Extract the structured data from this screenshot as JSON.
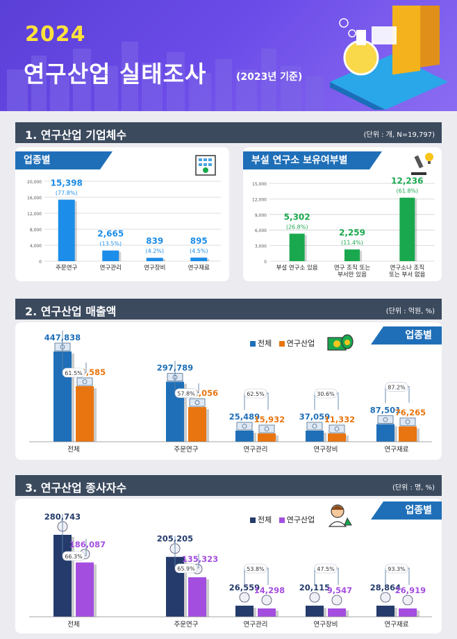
{
  "header": {
    "year": "2024",
    "title": "연구산업 실태조사",
    "subtitle": "(2023년 기준)"
  },
  "colors": {
    "total": "#1f6fb8",
    "industry_orange": "#e8750f",
    "industry_purple": "#a44ee0",
    "total_navy": "#243b6b",
    "section_blue": "#1c8de8",
    "section_green": "#1aa84e"
  },
  "section1": {
    "title": "1. 연구산업 기업체수",
    "unit": "(단위 : 개, N=19,797)",
    "left_tag": "업종별",
    "right_tag": "부설 연구소 보유여부별"
  },
  "section2": {
    "title": "2. 연구산업 매출액",
    "unit": "(단위 : 억원, %)",
    "tag": "업종별",
    "legend_total": "전체",
    "legend_industry": "연구산업"
  },
  "section3": {
    "title": "3. 연구산업 종사자수",
    "unit": "(단위 : 명, %)",
    "tag": "업종별",
    "legend_total": "전체",
    "legend_industry": "연구산업"
  },
  "chart_data": [
    {
      "type": "bar",
      "categories": [
        "주문연구",
        "연구관리",
        "연구장비",
        "연구재료"
      ],
      "values": [
        15398,
        2665,
        839,
        895
      ],
      "value_labels": [
        "15,398",
        "2,665",
        "839",
        "895"
      ],
      "pct_labels": [
        "(77.8%)",
        "(13.5%)",
        "(4.2%)",
        "(4.5%)"
      ],
      "yticks": [
        "0",
        "4,000",
        "8,000",
        "12,000",
        "16,000",
        "20,000"
      ],
      "ylim": [
        0,
        20000
      ]
    },
    {
      "type": "bar",
      "categories": [
        "부설 연구소 있음",
        "연구 조직 또는|부서만 있음",
        "연구소나 조직|또는 부서 없음"
      ],
      "values": [
        5302,
        2259,
        12236
      ],
      "value_labels": [
        "5,302",
        "2,259",
        "12,236"
      ],
      "pct_labels": [
        "(26.8%)",
        "(11.4%)",
        "(61.8%)"
      ],
      "yticks": [
        "0",
        "3,000",
        "6,000",
        "9,000",
        "12,000",
        "15,000"
      ],
      "ylim": [
        0,
        15000
      ]
    },
    {
      "type": "bar",
      "categories": [
        "전체",
        "주문연구",
        "연구관리",
        "연구장비",
        "연구재료"
      ],
      "series": [
        {
          "name": "전체",
          "values": [
            447838,
            297789,
            25489,
            37059,
            87501
          ],
          "labels": [
            "447,838",
            "297,789",
            "25,489",
            "37,059",
            "87,501"
          ]
        },
        {
          "name": "연구산업",
          "values": [
            275585,
            172056,
            15932,
            11332,
            76265
          ],
          "labels": [
            "275,585",
            "172,056",
            "15,932",
            "11,332",
            "76,265"
          ]
        }
      ],
      "ratios": [
        "61.5%",
        "57.8%",
        "62.5%",
        "30.6%",
        "87.2%"
      ]
    },
    {
      "type": "bar",
      "categories": [
        "전체",
        "주문연구",
        "연구관리",
        "연구장비",
        "연구재료"
      ],
      "series": [
        {
          "name": "전체",
          "values": [
            280743,
            205205,
            26559,
            20115,
            28864
          ],
          "labels": [
            "280,743",
            "205,205",
            "26,559",
            "20,115",
            "28,864"
          ]
        },
        {
          "name": "연구산업",
          "values": [
            186087,
            135323,
            14298,
            9547,
            26919
          ],
          "labels": [
            "186,087",
            "135,323",
            "14,298",
            "9,547",
            "26,919"
          ]
        }
      ],
      "ratios": [
        "66.3%",
        "65.9%",
        "53.8%",
        "47.5%",
        "93.3%"
      ]
    }
  ]
}
